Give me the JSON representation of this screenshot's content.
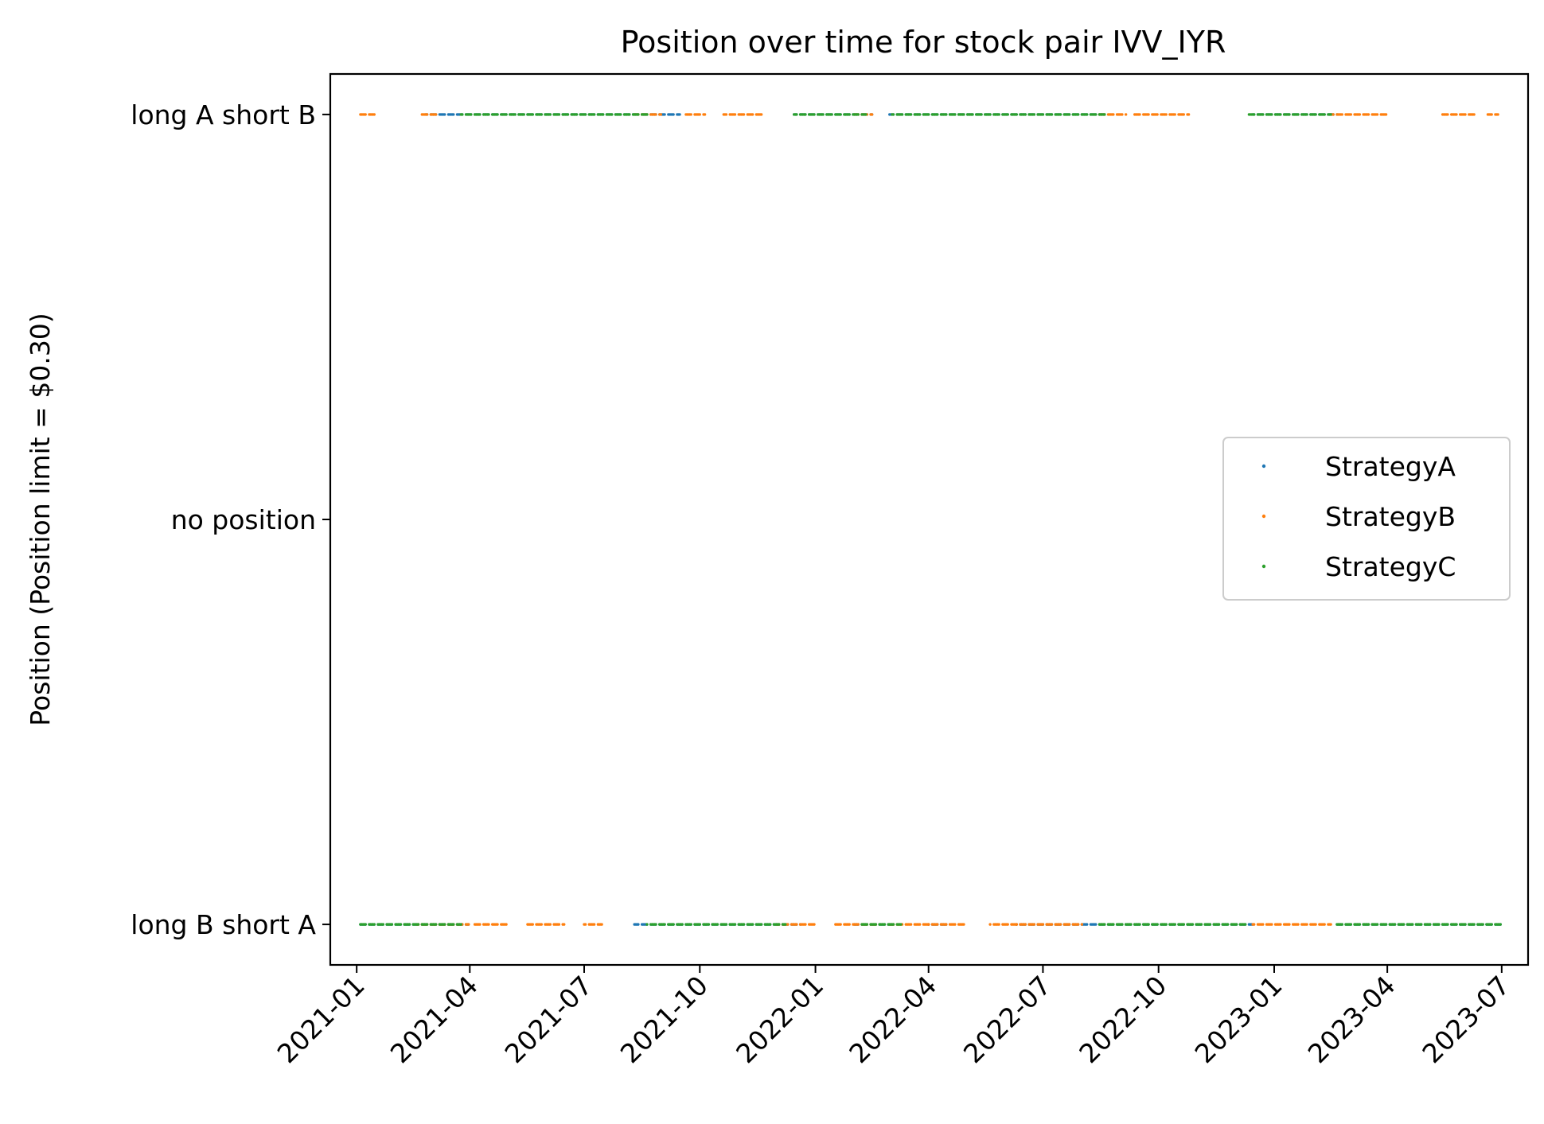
{
  "chart_data": {
    "type": "scatter",
    "title": "Position over time for stock pair IVV_IYR",
    "xlabel": "",
    "ylabel": "Position (Position limit = $0.30)",
    "xlim": [
      "2020-12-11",
      "2023-07-22"
    ],
    "ylim": [
      -1.1,
      1.1
    ],
    "x_ticks": [
      "2021-01",
      "2021-04",
      "2021-07",
      "2021-10",
      "2022-01",
      "2022-04",
      "2022-07",
      "2022-10",
      "2023-01",
      "2023-04",
      "2023-07"
    ],
    "y_ticks": [
      {
        "value": 1,
        "label": "long A short B"
      },
      {
        "value": 0,
        "label": "no position"
      },
      {
        "value": -1,
        "label": "long B short A"
      }
    ],
    "legend": {
      "position": "center-right"
    },
    "grid": false,
    "series": [
      {
        "name": "StrategyA",
        "color": "#1f77b4",
        "segments": [
          {
            "start": "2021-01-04",
            "end": "2021-03-31",
            "y": -1
          },
          {
            "start": "2021-02-25",
            "end": "2021-09-15",
            "y": 1
          },
          {
            "start": "2021-08-10",
            "end": "2021-12-20",
            "y": -1
          },
          {
            "start": "2021-12-15",
            "end": "2022-02-15",
            "y": 1
          },
          {
            "start": "2022-02-01",
            "end": "2022-03-05",
            "y": -1
          },
          {
            "start": "2022-03-01",
            "end": "2022-08-20",
            "y": 1
          },
          {
            "start": "2022-04-01",
            "end": "2022-04-15",
            "y": -1
          },
          {
            "start": "2022-06-10",
            "end": "2022-12-15",
            "y": -1
          },
          {
            "start": "2022-12-15",
            "end": "2023-02-20",
            "y": 1
          },
          {
            "start": "2023-02-20",
            "end": "2023-06-30",
            "y": -1
          }
        ]
      },
      {
        "name": "StrategyB",
        "color": "#ff7f0e",
        "segments": [
          {
            "start": "2021-01-04",
            "end": "2021-01-15",
            "y": 1
          },
          {
            "start": "2021-02-18",
            "end": "2021-03-31",
            "y": -1
          },
          {
            "start": "2021-02-20",
            "end": "2021-03-05",
            "y": 1
          },
          {
            "start": "2021-04-05",
            "end": "2021-04-30",
            "y": -1
          },
          {
            "start": "2021-05-15",
            "end": "2021-06-15",
            "y": -1
          },
          {
            "start": "2021-07-01",
            "end": "2021-07-15",
            "y": -1
          },
          {
            "start": "2021-08-10",
            "end": "2021-08-31",
            "y": 1
          },
          {
            "start": "2021-09-20",
            "end": "2021-10-05",
            "y": 1
          },
          {
            "start": "2021-10-20",
            "end": "2021-11-20",
            "y": 1
          },
          {
            "start": "2021-12-01",
            "end": "2021-12-31",
            "y": -1
          },
          {
            "start": "2022-01-15",
            "end": "2022-02-20",
            "y": -1
          },
          {
            "start": "2022-02-01",
            "end": "2022-02-15",
            "y": 1
          },
          {
            "start": "2022-03-01",
            "end": "2022-04-01",
            "y": -1
          },
          {
            "start": "2022-04-01",
            "end": "2022-05-01",
            "y": -1
          },
          {
            "start": "2022-05-20",
            "end": "2022-06-10",
            "y": -1
          },
          {
            "start": "2022-06-10",
            "end": "2022-08-01",
            "y": -1
          },
          {
            "start": "2022-08-15",
            "end": "2022-09-05",
            "y": 1
          },
          {
            "start": "2022-09-10",
            "end": "2022-10-25",
            "y": 1
          },
          {
            "start": "2022-12-15",
            "end": "2023-02-15",
            "y": -1
          },
          {
            "start": "2023-02-15",
            "end": "2023-03-31",
            "y": 1
          },
          {
            "start": "2023-05-15",
            "end": "2023-06-10",
            "y": 1
          },
          {
            "start": "2023-06-20",
            "end": "2023-06-28",
            "y": 1
          }
        ]
      },
      {
        "name": "StrategyC",
        "color": "#2ca02c",
        "segments": [
          {
            "start": "2021-01-04",
            "end": "2021-03-25",
            "y": -1
          },
          {
            "start": "2021-03-25",
            "end": "2021-08-20",
            "y": 1
          },
          {
            "start": "2021-08-20",
            "end": "2021-12-08",
            "y": -1
          },
          {
            "start": "2021-12-15",
            "end": "2022-02-10",
            "y": 1
          },
          {
            "start": "2022-02-05",
            "end": "2022-03-10",
            "y": -1
          },
          {
            "start": "2022-03-03",
            "end": "2022-08-20",
            "y": 1
          },
          {
            "start": "2022-08-15",
            "end": "2022-12-10",
            "y": -1
          },
          {
            "start": "2022-12-10",
            "end": "2023-02-15",
            "y": 1
          },
          {
            "start": "2023-02-20",
            "end": "2023-06-30",
            "y": -1
          }
        ]
      }
    ]
  }
}
